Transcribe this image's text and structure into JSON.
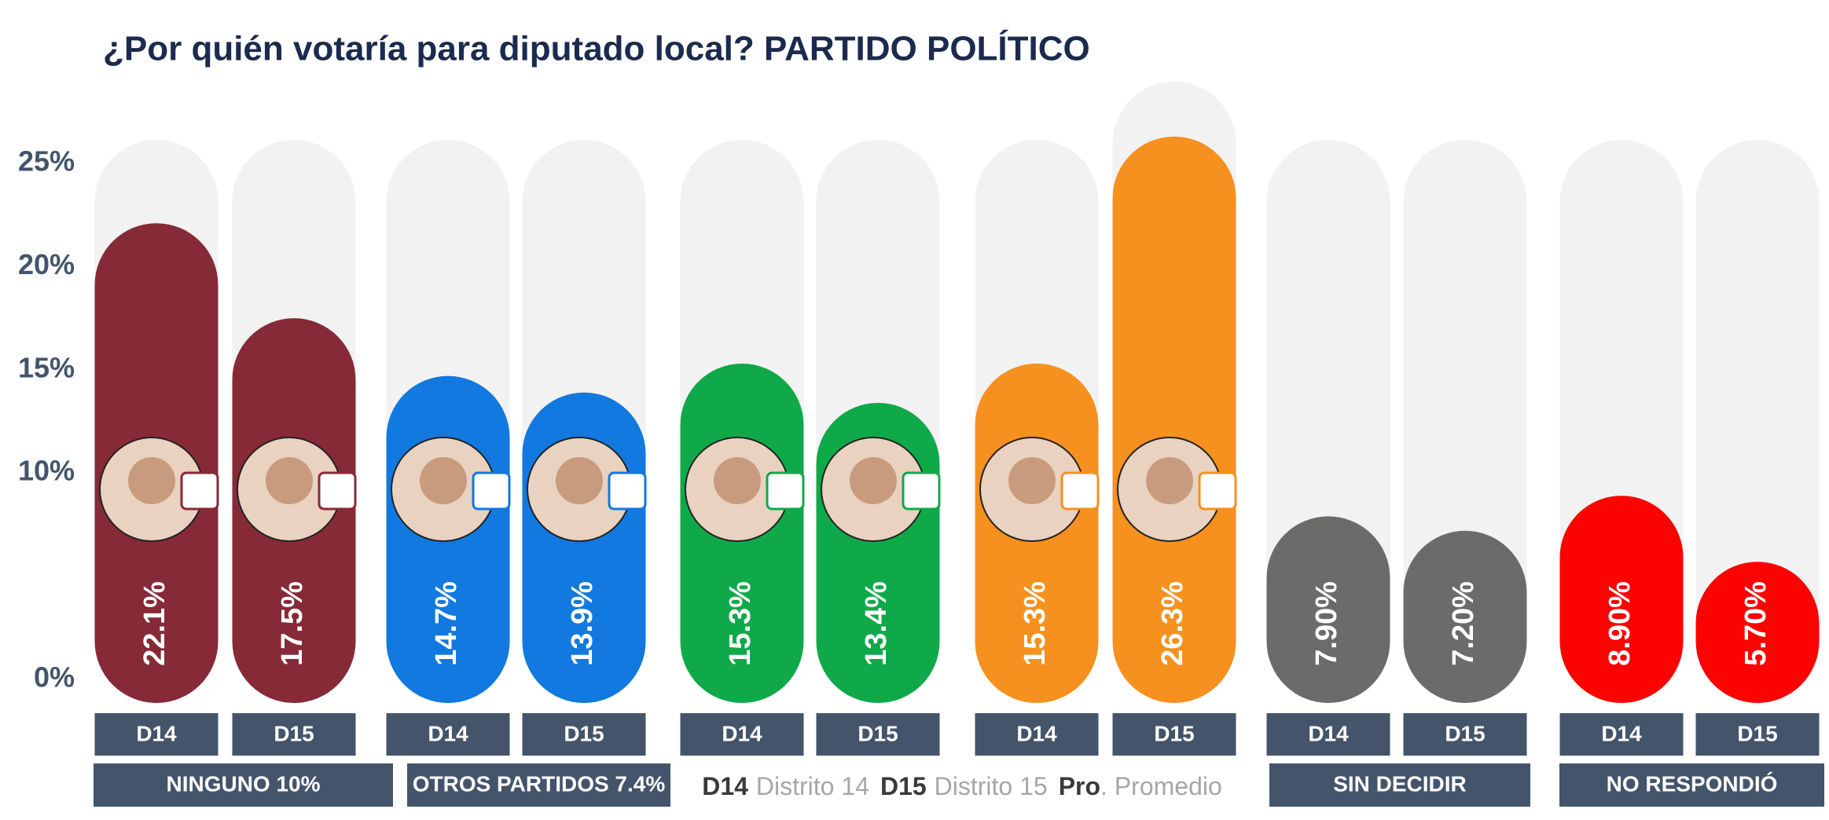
{
  "chart_data": {
    "type": "bar",
    "title": "¿Por quién votaría para diputado local? PARTIDO POLÍTICO",
    "categories": [
      "D14",
      "D15",
      "D14",
      "D15",
      "D14",
      "D15",
      "D14",
      "D15",
      "D14",
      "D15",
      "D14",
      "D15"
    ],
    "values": [
      22.1,
      17.5,
      14.7,
      13.9,
      15.3,
      13.4,
      15.3,
      26.3,
      7.9,
      7.2,
      8.9,
      5.7
    ],
    "value_labels": [
      "22.1%",
      "17.5%",
      "14.7%",
      "13.9%",
      "15.3%",
      "13.4%",
      "15.3%",
      "26.3%",
      "7.90%",
      "7.20%",
      "8.90%",
      "5.70%"
    ],
    "colors": [
      "#862a38",
      "#862a38",
      "#1179df",
      "#1179df",
      "#10a94a",
      "#10a94a",
      "#f6901e",
      "#f6901e",
      "#6b6c6a",
      "#6b6c6a",
      "#fb0300",
      "#fb0300"
    ],
    "ylim": [
      0,
      25
    ],
    "yticks": [
      {
        "value": 0,
        "label": "0%"
      },
      {
        "value": 10,
        "label": "10%"
      },
      {
        "value": 15,
        "label": "15%"
      },
      {
        "value": 20,
        "label": "20%"
      },
      {
        "value": 25,
        "label": "25%"
      }
    ],
    "footer_labels": [
      "NINGUNO 10%",
      "OTROS PARTIDOS 7.4%",
      "SIN DECIDIR",
      "NO RESPONDIÓ"
    ],
    "legend": [
      {
        "key": "D14",
        "text": "Distrito 14"
      },
      {
        "key": "D15",
        "text": "Distrito 15"
      },
      {
        "key": "Pro",
        "text": ". Promedio"
      }
    ]
  }
}
